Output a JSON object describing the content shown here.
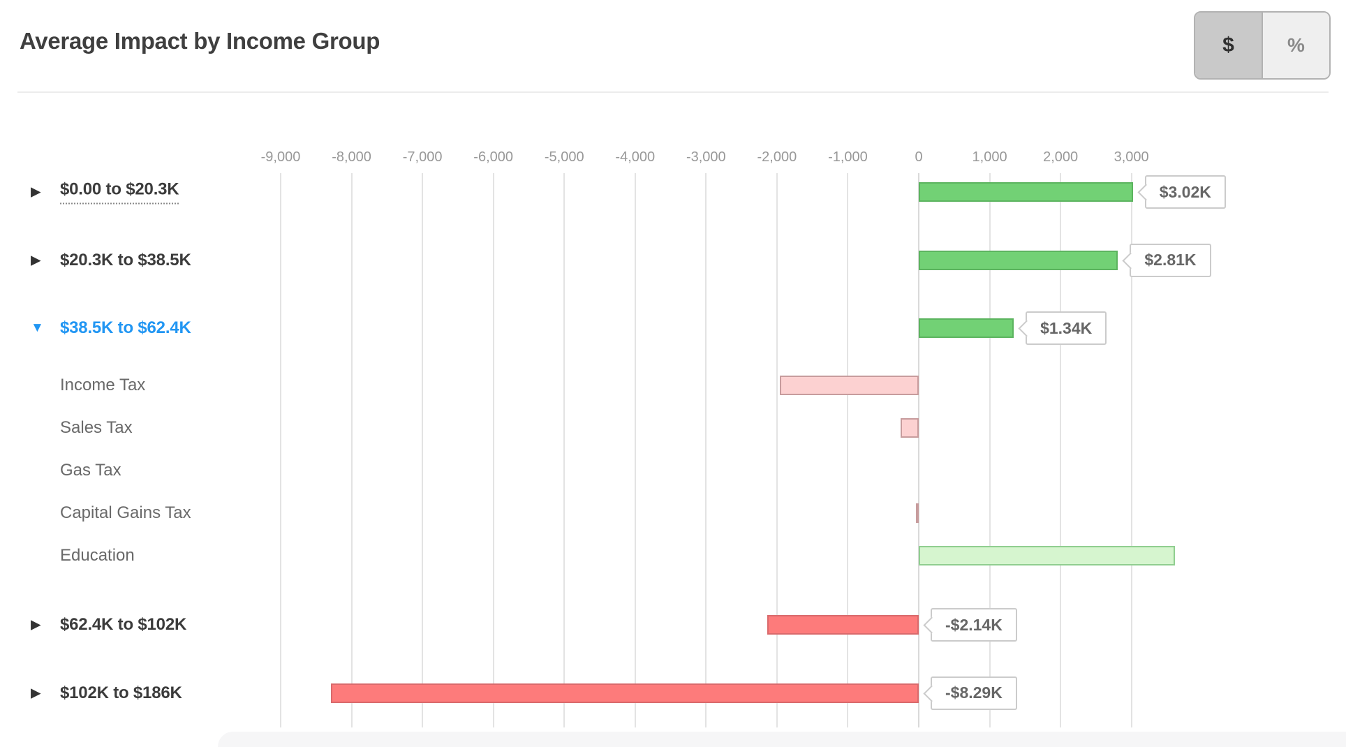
{
  "header": {
    "title": "Average Impact by Income Group",
    "unit_toggle": {
      "dollar_label": "$",
      "percent_label": "%",
      "selected": "$"
    }
  },
  "chart_data": {
    "type": "bar",
    "orientation": "horizontal",
    "unit": "dollars",
    "axis": {
      "min": -9500,
      "max": 3700,
      "tick_step": 1000,
      "grid": true,
      "ticks": [
        {
          "v": -9000,
          "label": "-9,000"
        },
        {
          "v": -8000,
          "label": "-8,000"
        },
        {
          "v": -7000,
          "label": "-7,000"
        },
        {
          "v": -6000,
          "label": "-6,000"
        },
        {
          "v": -5000,
          "label": "-5,000"
        },
        {
          "v": -4000,
          "label": "-4,000"
        },
        {
          "v": -3000,
          "label": "-3,000"
        },
        {
          "v": -2000,
          "label": "-2,000"
        },
        {
          "v": -1000,
          "label": "-1,000"
        },
        {
          "v": 0,
          "label": "0"
        },
        {
          "v": 1000,
          "label": "1,000"
        },
        {
          "v": 2000,
          "label": "2,000"
        },
        {
          "v": 3000,
          "label": "3,000"
        }
      ]
    },
    "rows": [
      {
        "label": "$0.00 to $20.3K",
        "kind": "group",
        "state": "collapsed",
        "value": 3020,
        "callout": "$3.02K",
        "bar": "green",
        "underlined": true
      },
      {
        "label": "$20.3K to $38.5K",
        "kind": "group",
        "state": "collapsed",
        "value": 2810,
        "callout": "$2.81K",
        "bar": "green"
      },
      {
        "label": "$38.5K to $62.4K",
        "kind": "group",
        "state": "expanded",
        "value": 1340,
        "callout": "$1.34K",
        "bar": "green"
      },
      {
        "label": "Income Tax",
        "kind": "sub",
        "value": -1960,
        "callout": null,
        "bar": "pink"
      },
      {
        "label": "Sales Tax",
        "kind": "sub",
        "value": -260,
        "callout": null,
        "bar": "pink"
      },
      {
        "label": "Gas Tax",
        "kind": "sub",
        "value": 0,
        "callout": null,
        "bar": "none"
      },
      {
        "label": "Capital Gains Tax",
        "kind": "sub",
        "value": -30,
        "callout": null,
        "bar": "pink"
      },
      {
        "label": "Education",
        "kind": "sub",
        "value": 3610,
        "callout": null,
        "bar": "light-green"
      },
      {
        "label": "$62.4K to $102K",
        "kind": "group",
        "state": "collapsed",
        "value": -2140,
        "callout": "-$2.14K",
        "bar": "red"
      },
      {
        "label": "$102K to $186K",
        "kind": "group",
        "state": "collapsed",
        "value": -8290,
        "callout": "-$8.29K",
        "bar": "red"
      }
    ],
    "colors": {
      "positive_bar": {
        "fill": "#72d175",
        "border": "#5cb45f"
      },
      "positive_bar_muted": {
        "fill": "#d6f5cf",
        "border": "#90ce90"
      },
      "negative_bar": {
        "fill": "#fd7b7b",
        "border": "#d96a6c"
      },
      "negative_bar_muted": {
        "fill": "#fcd1d1",
        "border": "#c79c9d"
      },
      "expanded_label": "#2196f3",
      "gridline": "#e3e3e3"
    },
    "collapsed_arrow_glyph": "▶",
    "expanded_arrow_glyph": "▼"
  }
}
